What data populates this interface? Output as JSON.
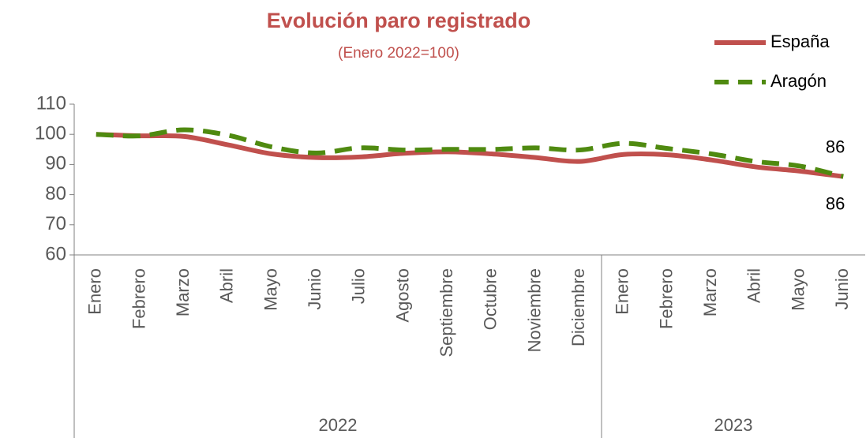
{
  "chart_data": {
    "type": "line",
    "title": "Evolución paro registrado",
    "subtitle": "(Enero 2022=100)",
    "categories": [
      "Enero",
      "Febrero",
      "Marzo",
      "Abril",
      "Mayo",
      "Junio",
      "Julio",
      "Agosto",
      "Septiembre",
      "Octubre",
      "Noviembre",
      "Diciembre",
      "Enero",
      "Febrero",
      "Marzo",
      "Abril",
      "Mayo",
      "Junio"
    ],
    "groups": [
      {
        "label": "2022",
        "count": 12
      },
      {
        "label": "2023",
        "count": 6
      }
    ],
    "series": [
      {
        "name": "España",
        "color": "#c0504d",
        "dash": false,
        "values": [
          100,
          99.5,
          99.3,
          96.5,
          93.5,
          92.3,
          92.5,
          93.7,
          94.2,
          93.5,
          92.3,
          91,
          93.3,
          93.2,
          91.5,
          89.2,
          87.8,
          86
        ]
      },
      {
        "name": "Aragón",
        "color": "#4f8a10",
        "dash": true,
        "values": [
          100,
          99.5,
          101.5,
          99.7,
          95.8,
          93.8,
          95.5,
          94.8,
          95,
          95,
          95.5,
          94.8,
          97,
          95.3,
          93.5,
          91,
          89.5,
          86
        ]
      }
    ],
    "ylim": [
      60,
      110
    ],
    "yticks": [
      60,
      70,
      80,
      90,
      100,
      110
    ],
    "grid": false,
    "legend": "top-right"
  }
}
